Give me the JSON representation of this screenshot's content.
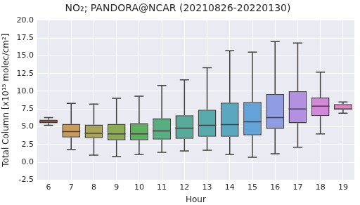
{
  "chart_data": {
    "type": "box",
    "title": "NO₂; PANDORA@NCAR (20210826-20220130)",
    "x_label": "Hour",
    "y_label": "Total Column [x10¹⁵ molec/cm²]",
    "categories": [
      "6",
      "7",
      "8",
      "9",
      "10",
      "11",
      "12",
      "13",
      "14",
      "15",
      "16",
      "17",
      "18",
      "19"
    ],
    "whisker_low": [
      5.2,
      1.8,
      1.0,
      0.8,
      1.1,
      1.4,
      1.6,
      1.7,
      1.1,
      0.7,
      1.2,
      2.1,
      4.0,
      6.9
    ],
    "q1": [
      5.5,
      3.5,
      3.4,
      3.1,
      3.1,
      3.2,
      3.3,
      3.6,
      3.6,
      3.8,
      4.7,
      5.5,
      6.5,
      7.4
    ],
    "median": [
      5.7,
      4.3,
      4.1,
      4.0,
      4.0,
      4.4,
      4.8,
      5.2,
      5.3,
      5.7,
      6.3,
      7.5,
      7.9,
      7.5
    ],
    "q3": [
      6.0,
      5.4,
      5.3,
      5.4,
      5.5,
      6.2,
      6.6,
      7.4,
      8.4,
      8.5,
      9.6,
      10.0,
      9.1,
      8.2
    ],
    "whisker_high": [
      6.3,
      8.3,
      8.2,
      9.0,
      9.3,
      10.8,
      11.6,
      13.3,
      15.7,
      15.5,
      17.0,
      16.8,
      12.7,
      8.5
    ],
    "colors": [
      "#e1907e",
      "#c89b5c",
      "#a9a45a",
      "#8aab52",
      "#5eb05c",
      "#58ae80",
      "#57ab98",
      "#58a9ab",
      "#5ba7bf",
      "#64a2d8",
      "#8f9ce2",
      "#b490e0",
      "#d486d8",
      "#e181bd"
    ],
    "ylim": [
      -2.5,
      20
    ],
    "yticks": [
      -2.5,
      {
        "value": 0,
        "label": "0.0"
      },
      2.5,
      {
        "value": 5,
        "label": "5.0"
      },
      7.5,
      {
        "value": 10,
        "label": "10.0"
      },
      12.5,
      {
        "value": 15,
        "label": "15.0"
      },
      17.5,
      {
        "value": 20,
        "label": "20.0"
      }
    ],
    "grid": true
  }
}
